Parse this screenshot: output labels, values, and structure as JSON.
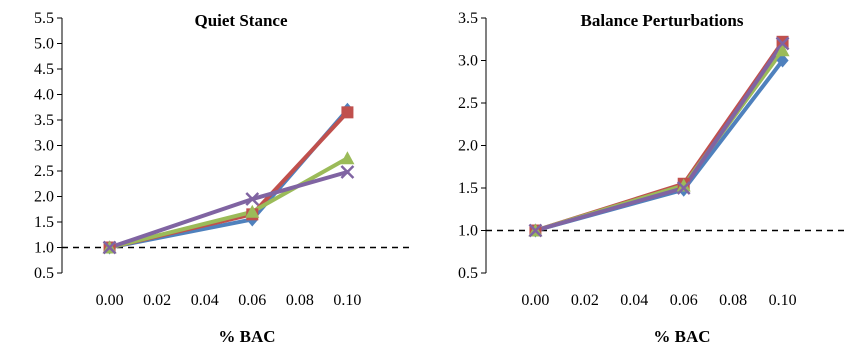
{
  "chart_data": [
    {
      "type": "line",
      "title": "Quiet Stance",
      "xlabel": "% BAC",
      "ylabel": "",
      "x": [
        0.0,
        0.06,
        0.1
      ],
      "x_ticks": [
        "0.00",
        "0.02",
        "0.04",
        "0.06",
        "0.08",
        "0.10"
      ],
      "xlim": [
        -0.02,
        0.12
      ],
      "y_ticks": [
        "0.5",
        "1.0",
        "1.5",
        "2.0",
        "2.5",
        "3.0",
        "3.5",
        "4.0",
        "4.5",
        "5.0",
        "5.5"
      ],
      "ylim": [
        0.5,
        5.5
      ],
      "reference_line": 1.0,
      "grid": false,
      "series": [
        {
          "color": "#4F81BD",
          "marker": "diamond",
          "values": [
            1.0,
            1.55,
            3.7
          ]
        },
        {
          "color": "#C0504D",
          "marker": "square",
          "values": [
            1.0,
            1.65,
            3.65
          ]
        },
        {
          "color": "#9BBB59",
          "marker": "triangle",
          "values": [
            1.0,
            1.7,
            2.75
          ]
        },
        {
          "color": "#8064A2",
          "marker": "x",
          "values": [
            1.0,
            1.95,
            2.48
          ]
        }
      ]
    },
    {
      "type": "line",
      "title": "Balance Perturbations",
      "xlabel": "% BAC",
      "ylabel": "",
      "x": [
        0.0,
        0.06,
        0.1
      ],
      "x_ticks": [
        "0.00",
        "0.02",
        "0.04",
        "0.06",
        "0.08",
        "0.10"
      ],
      "xlim": [
        -0.02,
        0.12
      ],
      "y_ticks": [
        "0.5",
        "1.0",
        "1.5",
        "2.0",
        "2.5",
        "3.0",
        "3.5"
      ],
      "ylim": [
        0.5,
        3.5
      ],
      "reference_line": 1.0,
      "grid": false,
      "series": [
        {
          "color": "#4F81BD",
          "marker": "diamond",
          "values": [
            1.0,
            1.48,
            3.0
          ]
        },
        {
          "color": "#C0504D",
          "marker": "square",
          "values": [
            1.0,
            1.55,
            3.22
          ]
        },
        {
          "color": "#9BBB59",
          "marker": "triangle",
          "values": [
            1.0,
            1.53,
            3.12
          ]
        },
        {
          "color": "#8064A2",
          "marker": "x",
          "values": [
            1.0,
            1.5,
            3.2
          ]
        }
      ]
    }
  ]
}
